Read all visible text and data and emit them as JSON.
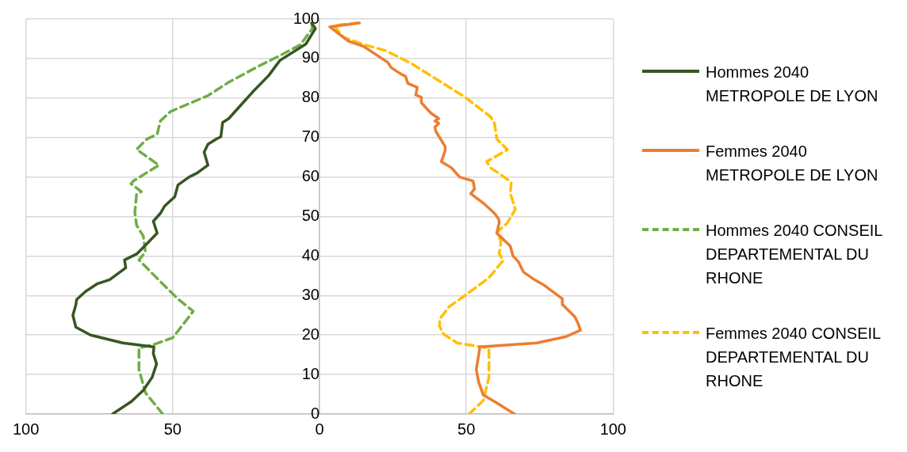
{
  "chart_data": {
    "type": "line",
    "marker": "none",
    "grid": true,
    "legend": "right",
    "xlim": [
      -100,
      100
    ],
    "xticks": [
      {
        "value": -100,
        "label": "100"
      },
      {
        "value": -50,
        "label": "50"
      },
      0,
      50,
      100
    ],
    "ylim": [
      0,
      100
    ],
    "yticks": [
      0,
      10,
      20,
      30,
      40,
      50,
      60,
      70,
      80,
      90,
      100
    ],
    "series": [
      {
        "name": "Hommes 2040 METROPOLE DE LYON",
        "color": "#375623",
        "line_style": "solid",
        "x": [
          -70.5,
          -64,
          -60,
          -57,
          -55.5,
          -56.6,
          -56.4,
          -67,
          -78,
          -83,
          -84,
          -83,
          -82.7,
          -79.7,
          -75.6,
          -71.5,
          -66,
          -66.4,
          -62.3,
          -59.6,
          -55.3,
          -56.6,
          -54.2,
          -52.8,
          -49.3,
          -48.2,
          -44.4,
          -41.7,
          -38,
          -39.3,
          -38,
          -35.2,
          -33.6,
          -33,
          -30.9,
          -26.3,
          -22.8,
          -17.3,
          -13.5,
          -4.6,
          -1.4,
          -2.7
        ],
        "values": [
          0,
          3.2,
          6,
          9.3,
          12.7,
          15.3,
          17,
          18,
          20,
          22,
          25,
          27.6,
          29,
          31,
          33,
          34,
          37,
          39,
          40.5,
          42.5,
          45.8,
          48.8,
          50.8,
          52.6,
          55,
          58,
          60,
          61,
          63,
          66.3,
          68.3,
          69.6,
          70.2,
          73.8,
          74.8,
          78.6,
          81.5,
          85.7,
          89.5,
          93.7,
          97.6,
          99
        ]
      },
      {
        "name": "Femmes 2040 METROPOLE DE LYON",
        "color": "#ed7d31",
        "line_style": "solid",
        "x": [
          66.4,
          60.4,
          55.8,
          54.2,
          53.4,
          54.5,
          54.5,
          74,
          84,
          88.9,
          88,
          87,
          82.9,
          82.7,
          76.7,
          73.2,
          69.4,
          67.8,
          65.9,
          65,
          60.4,
          61.2,
          61,
          59.6,
          55.8,
          51.5,
          52.8,
          52.3,
          47.7,
          45,
          41.5,
          42.8,
          42.8,
          39.6,
          39.3,
          40.6,
          39.3,
          40.6,
          37.9,
          34.7,
          34.7,
          32.8,
          33.3,
          30.1,
          29.3,
          27.9,
          24.4,
          23.3,
          19.2,
          15.2,
          9.8,
          3.5,
          13.6
        ],
        "values": [
          0,
          2.8,
          4.8,
          8.1,
          11.3,
          16.3,
          17,
          18,
          19.6,
          21.2,
          23,
          24.6,
          27.6,
          29.2,
          32.5,
          34,
          36,
          38.5,
          40,
          42.5,
          45.8,
          48.4,
          49.4,
          50.8,
          53.4,
          55.8,
          57,
          59,
          60,
          62.3,
          63.9,
          66.7,
          67.7,
          71.6,
          72.6,
          73.6,
          74.2,
          74.8,
          76.2,
          78.8,
          80.2,
          80.8,
          82.7,
          83.7,
          85.5,
          86,
          87.7,
          89,
          91,
          93,
          94.4,
          98,
          99
        ]
      },
      {
        "name": "Hommes 2040 CONSEIL DEPARTEMENTAL DU RHONE",
        "color": "#70ad47",
        "line_style": "dashed",
        "x": [
          -53.4,
          -59.3,
          -61.5,
          -61.5,
          -56,
          -50,
          -43,
          -48,
          -51.5,
          -61.5,
          -59.3,
          -60,
          -62.3,
          -62.9,
          -62.3,
          -60.7,
          -64.2,
          -63.4,
          -54.7,
          -62.3,
          -58.8,
          -55.3,
          -54.2,
          -50.7,
          -38,
          -30.9,
          -20.9,
          -13.6,
          -6.5,
          -2.4,
          -2.7
        ],
        "values": [
          0,
          5.4,
          11.3,
          16.7,
          17.7,
          19.3,
          26,
          29,
          31.5,
          39,
          41,
          45,
          47.8,
          51,
          55.7,
          56.3,
          58.3,
          59,
          63,
          67,
          69.6,
          70.8,
          74.2,
          76.6,
          80.6,
          84,
          88,
          90.7,
          93.5,
          97.6,
          99
        ]
      },
      {
        "name": "Femmes 2040 CONSEIL DEPARTEMENTAL DU RHONE",
        "color": "#ffc000",
        "line_style": "dashed",
        "x": [
          50.9,
          55.8,
          57.7,
          57.7,
          55,
          46.9,
          42.3,
          40.9,
          40.9,
          44.2,
          48.8,
          52.3,
          57.7,
          62.6,
          61.2,
          61.8,
          60.4,
          64,
          66.7,
          65,
          65.3,
          62.3,
          58.3,
          56.9,
          64,
          60.4,
          59.6,
          58.3,
          49.6,
          41.5,
          31.4,
          22.5,
          15.2,
          8.1,
          4.9,
          13
        ],
        "values": [
          0,
          3.4,
          9.3,
          16.7,
          17,
          18,
          20.2,
          22.2,
          24,
          27.2,
          29.6,
          31.5,
          34.5,
          38.9,
          40.5,
          43.8,
          46,
          48.4,
          51.8,
          55.8,
          58.7,
          60.3,
          62.3,
          63.9,
          66.9,
          69.6,
          73.6,
          75.2,
          80.2,
          84,
          88.7,
          92,
          93.5,
          95.4,
          98.4,
          99
        ]
      }
    ]
  }
}
